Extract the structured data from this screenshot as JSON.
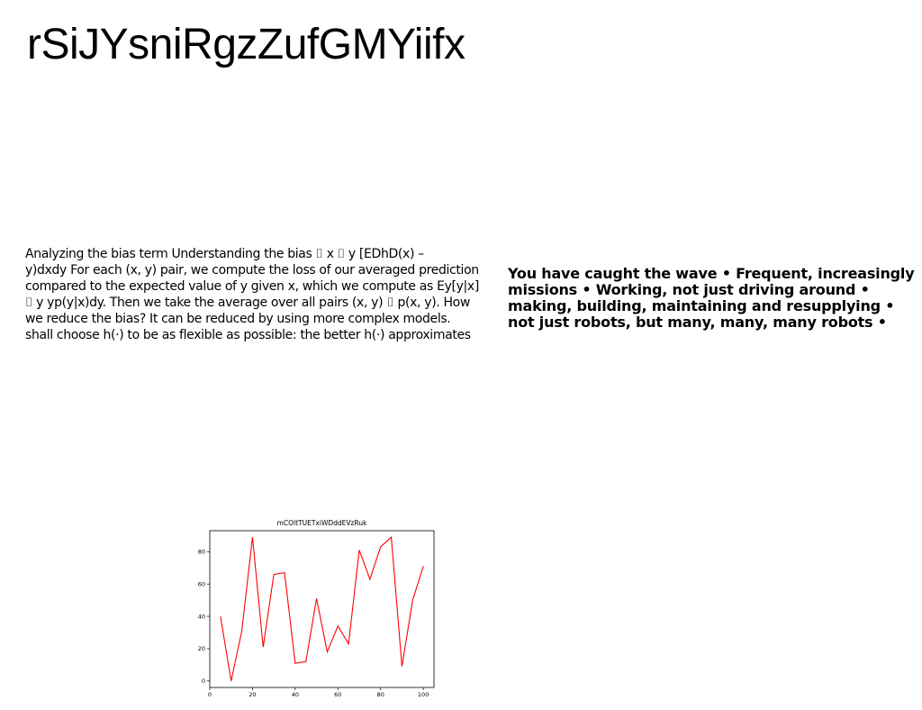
{
  "page": {
    "title": "rSiJYsniRgzZufGMYiifx"
  },
  "left_paragraph": {
    "lines": [
      "Analyzing the bias term Understanding the bias ⌷ x ⌷ y [EDhD(x) –",
      "y)dxdy For each (x, y) pair, we compute the loss of our averaged prediction",
      "compared to the expected value of y given x, which we compute as Ey[y|x]",
      "⌷ y yp(y|x)dy. Then we take the average over all pairs (x, y) ⌷ p(x, y). How",
      "we reduce the bias? It can be reduced by using more complex models.",
      "shall choose h(·) to be as flexible as possible: the better h(·) approximates"
    ]
  },
  "right_paragraph": {
    "lines": [
      "You have caught the wave • Frequent, increasingly",
      "missions • Working, not just driving around •",
      "making, building, maintaining and resupplying •",
      "not just robots, but many, many, many robots •"
    ]
  },
  "chart_data": {
    "type": "line",
    "title": "mCOltTUETxiWDddEVzRuk",
    "xlabel": "",
    "ylabel": "",
    "x": [
      5,
      10,
      15,
      20,
      25,
      30,
      35,
      40,
      45,
      50,
      55,
      60,
      65,
      70,
      75,
      80,
      85,
      90,
      95,
      100
    ],
    "series": [
      {
        "values": [
          40,
          0,
          31,
          89,
          21,
          66,
          67,
          11,
          12,
          51,
          18,
          34,
          23,
          81,
          63,
          83,
          89,
          9,
          50,
          71
        ],
        "color": "#ff0000"
      }
    ],
    "xlim": [
      0,
      105
    ],
    "ylim": [
      -4,
      93
    ],
    "xticks": [
      0,
      20,
      40,
      60,
      80,
      100
    ],
    "yticks": [
      0,
      20,
      40,
      60,
      80
    ],
    "grid": false,
    "legend": "none"
  }
}
